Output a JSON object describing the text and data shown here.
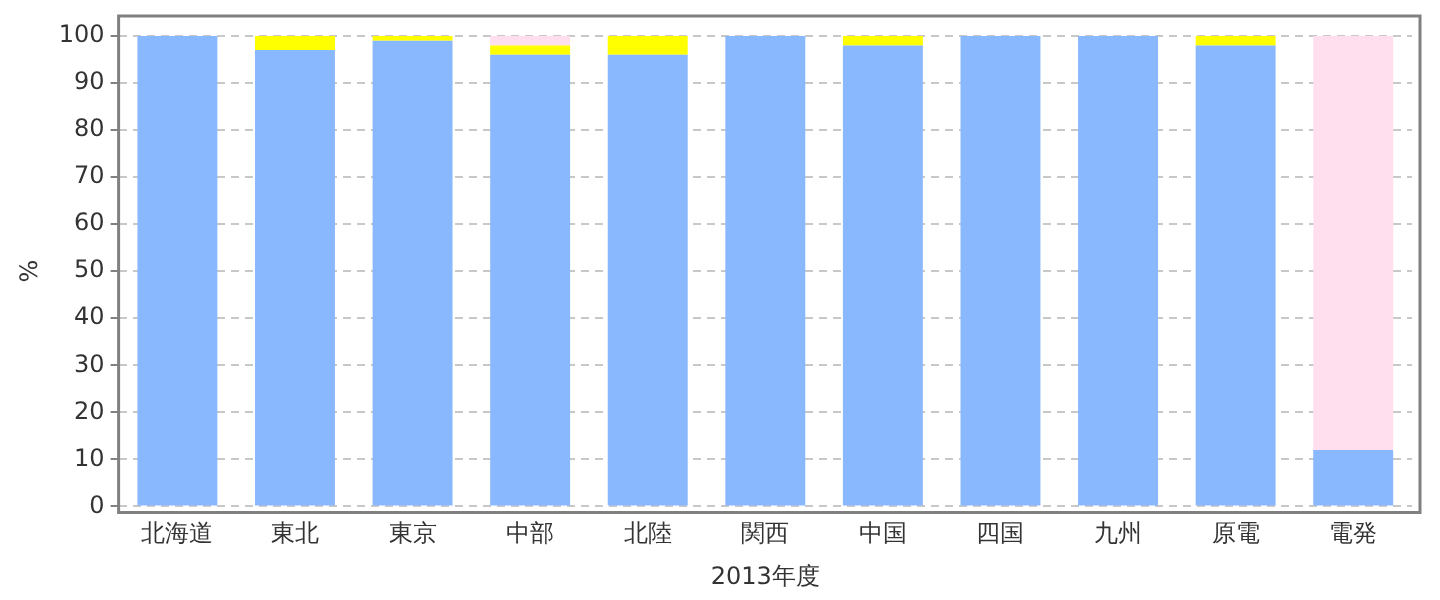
{
  "chart_data": {
    "type": "bar",
    "stacked": true,
    "xlabel": "2013年度",
    "ylabel": "%",
    "categories": [
      "北海道",
      "東北",
      "東京",
      "中部",
      "北陸",
      "関西",
      "中国",
      "四国",
      "九州",
      "原電",
      "電発"
    ],
    "series": [
      {
        "color": "#8ab8ff",
        "values": [
          100,
          97,
          99,
          96,
          96,
          100,
          98,
          100,
          100,
          98,
          12
        ]
      },
      {
        "color": "#ffff00",
        "values": [
          0,
          3,
          1,
          2,
          4,
          0,
          2,
          0,
          0,
          2,
          0
        ]
      },
      {
        "color": "#ffdfee",
        "values": [
          0,
          0,
          0,
          2,
          0,
          0,
          0,
          0,
          0,
          0,
          88
        ]
      }
    ],
    "ylim": [
      0,
      100
    ],
    "yticks": [
      0,
      10,
      20,
      30,
      40,
      50,
      60,
      70,
      80,
      90,
      100
    ],
    "grid": "y",
    "legend": false
  }
}
